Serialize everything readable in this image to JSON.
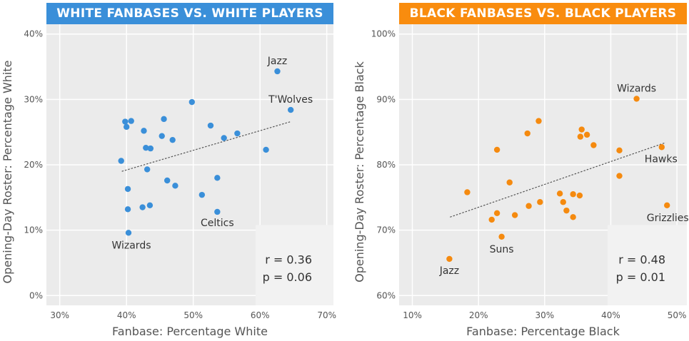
{
  "chart_data": [
    {
      "type": "scatter",
      "title": "WHITE FANBASES VS. WHITE PLAYERS",
      "xlabel": "Fanbase: Percentage White",
      "ylabel": "Opening-Day Roster: Percentage White",
      "xlim": [
        28,
        71
      ],
      "ylim": [
        -1.5,
        41.5
      ],
      "xticks": [
        "30%",
        "40%",
        "50%",
        "60%",
        "70%"
      ],
      "xtick_values": [
        30,
        40,
        50,
        60,
        70
      ],
      "yticks": [
        "0%",
        "10%",
        "20%",
        "30%",
        "40%"
      ],
      "ytick_values": [
        0,
        10,
        20,
        30,
        40
      ],
      "color": "#3a8fd9",
      "title_bg": "#3a8fd9",
      "grid": true,
      "points": [
        {
          "x": 62.6,
          "y": 34.3,
          "label": "Jazz"
        },
        {
          "x": 64.6,
          "y": 28.4,
          "label": "T'Wolves"
        },
        {
          "x": 53.6,
          "y": 12.8,
          "label": "Celtics"
        },
        {
          "x": 40.3,
          "y": 9.6,
          "label": "Wizards"
        },
        {
          "x": 49.8,
          "y": 29.6
        },
        {
          "x": 39.8,
          "y": 26.6
        },
        {
          "x": 40.7,
          "y": 26.7
        },
        {
          "x": 40.0,
          "y": 25.8
        },
        {
          "x": 42.6,
          "y": 25.2
        },
        {
          "x": 45.6,
          "y": 27.0
        },
        {
          "x": 52.6,
          "y": 26.0
        },
        {
          "x": 56.6,
          "y": 24.8
        },
        {
          "x": 54.6,
          "y": 24.1
        },
        {
          "x": 45.3,
          "y": 24.4
        },
        {
          "x": 46.9,
          "y": 23.8
        },
        {
          "x": 42.9,
          "y": 22.6
        },
        {
          "x": 43.6,
          "y": 22.5
        },
        {
          "x": 60.9,
          "y": 22.3
        },
        {
          "x": 39.2,
          "y": 20.6
        },
        {
          "x": 43.1,
          "y": 19.3
        },
        {
          "x": 53.6,
          "y": 18.0
        },
        {
          "x": 46.1,
          "y": 17.6
        },
        {
          "x": 47.3,
          "y": 16.8
        },
        {
          "x": 40.2,
          "y": 16.3
        },
        {
          "x": 51.3,
          "y": 15.4
        },
        {
          "x": 42.4,
          "y": 13.5
        },
        {
          "x": 43.5,
          "y": 13.8
        },
        {
          "x": 40.2,
          "y": 13.2
        }
      ],
      "trendline": {
        "x1": 39.3,
        "y1": 19.0,
        "x2": 64.6,
        "y2": 26.6
      },
      "stats": {
        "r": "r = 0.36",
        "p": "p = 0.06"
      }
    },
    {
      "type": "scatter",
      "title": "BLACK FANBASES VS. BLACK PLAYERS",
      "xlabel": "Fanbase: Percentage Black",
      "ylabel": "Opening-Day Roster: Percentage Black",
      "xlim": [
        8,
        51.5
      ],
      "ylim": [
        58.5,
        101.5
      ],
      "xticks": [
        "10%",
        "20%",
        "30%",
        "40%",
        "50%"
      ],
      "xtick_values": [
        10,
        20,
        30,
        40,
        50
      ],
      "yticks": [
        "60%",
        "70%",
        "80%",
        "90%",
        "100%"
      ],
      "ytick_values": [
        60,
        70,
        80,
        90,
        100
      ],
      "color": "#f58a0f",
      "title_bg": "#f98c0e",
      "grid": true,
      "points": [
        {
          "x": 43.9,
          "y": 90.1,
          "label": "Wizards"
        },
        {
          "x": 47.7,
          "y": 82.7,
          "label": "Hawks"
        },
        {
          "x": 48.5,
          "y": 73.8,
          "label": "Grizzlies"
        },
        {
          "x": 23.5,
          "y": 69.0,
          "label": "Suns"
        },
        {
          "x": 15.6,
          "y": 65.6,
          "label": "Jazz"
        },
        {
          "x": 29.1,
          "y": 86.7
        },
        {
          "x": 27.4,
          "y": 84.8
        },
        {
          "x": 35.6,
          "y": 85.4
        },
        {
          "x": 36.4,
          "y": 84.6
        },
        {
          "x": 35.4,
          "y": 84.3
        },
        {
          "x": 37.4,
          "y": 83.0
        },
        {
          "x": 22.8,
          "y": 82.3
        },
        {
          "x": 41.3,
          "y": 82.2
        },
        {
          "x": 41.3,
          "y": 78.3
        },
        {
          "x": 24.7,
          "y": 77.3
        },
        {
          "x": 18.3,
          "y": 75.8
        },
        {
          "x": 32.3,
          "y": 75.6
        },
        {
          "x": 34.3,
          "y": 75.5
        },
        {
          "x": 35.3,
          "y": 75.3
        },
        {
          "x": 32.8,
          "y": 74.3
        },
        {
          "x": 29.3,
          "y": 74.3
        },
        {
          "x": 27.6,
          "y": 73.7
        },
        {
          "x": 33.3,
          "y": 73.0
        },
        {
          "x": 22.8,
          "y": 72.6
        },
        {
          "x": 25.5,
          "y": 72.3
        },
        {
          "x": 34.3,
          "y": 72.0
        },
        {
          "x": 22.0,
          "y": 71.6
        }
      ],
      "trendline": {
        "x1": 15.7,
        "y1": 72.0,
        "x2": 48.3,
        "y2": 83.4
      },
      "stats": {
        "r": "r = 0.48",
        "p": "p = 0.01"
      }
    }
  ]
}
